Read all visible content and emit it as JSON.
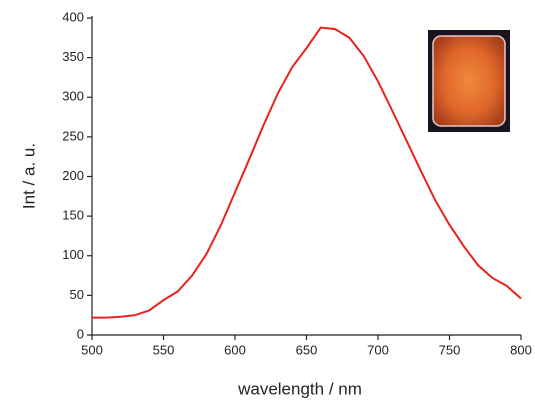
{
  "chart_data": {
    "type": "line",
    "x_label": "wavelength / nm",
    "y_label": "Int / a. u.",
    "x": [
      500,
      510,
      520,
      530,
      540,
      550,
      560,
      570,
      580,
      590,
      600,
      610,
      620,
      630,
      640,
      650,
      660,
      670,
      680,
      690,
      700,
      710,
      720,
      730,
      740,
      750,
      760,
      770,
      780,
      790,
      800
    ],
    "series": [
      {
        "color": "#e8231e",
        "values": [
          22,
          22,
          23,
          25,
          31,
          44,
          55,
          75,
          102,
          138,
          180,
          222,
          265,
          305,
          338,
          362,
          388,
          386,
          375,
          352,
          320,
          283,
          245,
          207,
          170,
          139,
          112,
          88,
          72,
          62,
          46
        ]
      }
    ],
    "xlim": [
      500,
      800
    ],
    "xticks": [
      500,
      550,
      600,
      650,
      700,
      750,
      800
    ],
    "ylim": [
      0,
      400
    ],
    "yticks": [
      0,
      50,
      100,
      150,
      200,
      250,
      300,
      350,
      400
    ]
  }
}
